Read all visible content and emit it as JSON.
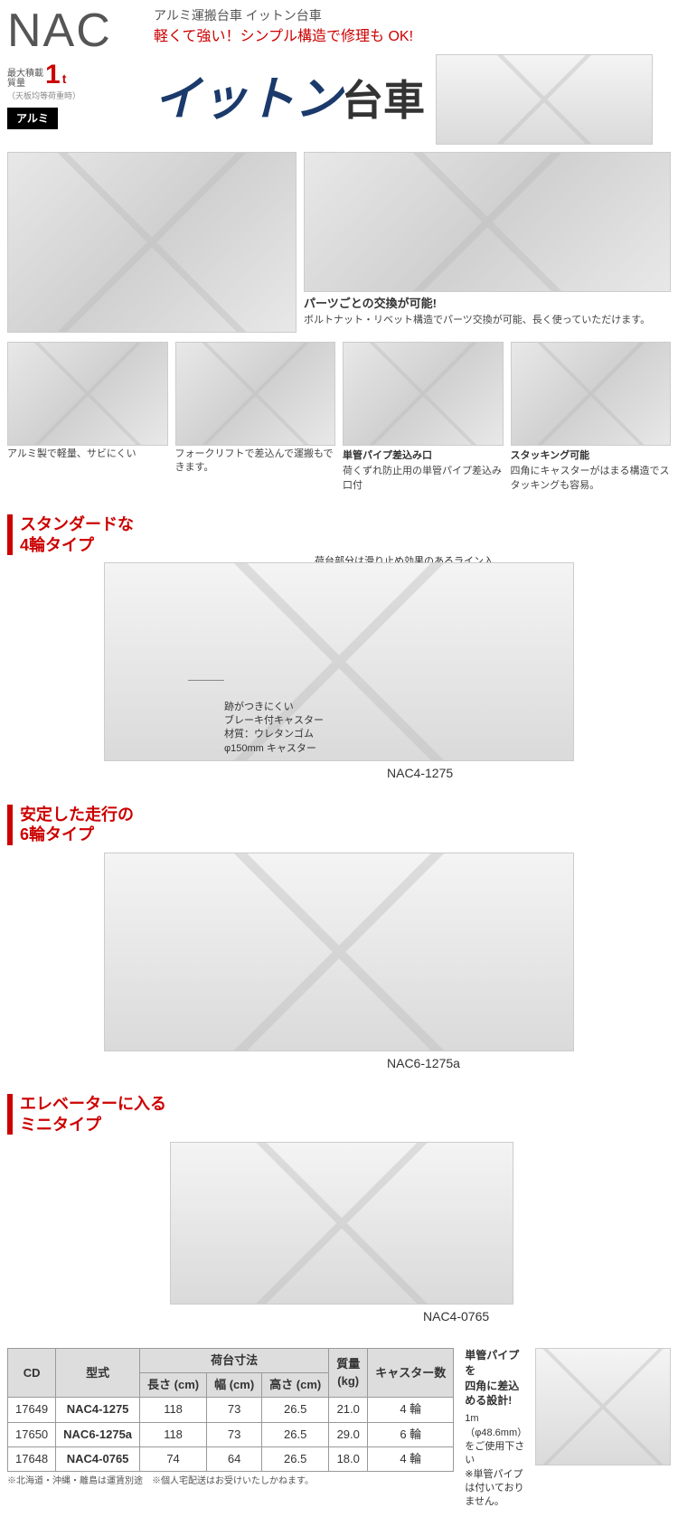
{
  "header": {
    "code": "NAC",
    "subtitle": "アルミ運搬台車 イットン台車",
    "tagline": "軽くて強い！シンプル構造で修理も OK!",
    "load_label": "最大積載\n質量",
    "load_value": "1",
    "load_unit": "t",
    "load_note": "（天板均等荷重時）",
    "material_badge": "アルミ",
    "title_big": "イットン",
    "title_rest": "台車"
  },
  "features": {
    "f1_cap": "",
    "f2_title": "パーツごとの交換が可能!",
    "f2_cap": "ボルトナット・リベット構造でパーツ交換が可能、長く使っていただけます。",
    "f3_cap": "アルミ製で軽量、サビにくい",
    "f4_cap": "フォークリフトで差込んで運搬もできます。",
    "f5_title": "単管パイプ差込み口",
    "f5_cap": "荷くずれ防止用の単管パイプ差込み口付",
    "f6_title": "スタッキング可能",
    "f6_cap": "四角にキャスターがはまる構造でスタッキングも容易。"
  },
  "sections": {
    "s1_head": "スタンダードな\n4輪タイプ",
    "s1_model": "NAC4-1275",
    "s1_call_top": "荷台部分は滑り止め効果のあるライン入り",
    "s1_call_bot": "跡がつきにくい\nブレーキ付キャスター\n材質：ウレタンゴム\nφ150mm キャスター",
    "s2_head": "安定した走行の\n6輪タイプ",
    "s2_model": "NAC6-1275a",
    "s3_head": "エレベーターに入る\nミニタイプ",
    "s3_model": "NAC4-0765"
  },
  "table": {
    "columns": [
      "CD",
      "型式",
      "長さ (cm)",
      "幅 (cm)",
      "高さ (cm)",
      "質量\n(kg)",
      "キャスター数"
    ],
    "group_header": "荷台寸法",
    "rows": [
      [
        "17649",
        "NAC4-1275",
        "118",
        "73",
        "26.5",
        "21.0",
        "4 輪"
      ],
      [
        "17650",
        "NAC6-1275a",
        "118",
        "73",
        "26.5",
        "29.0",
        "6 輪"
      ],
      [
        "17648",
        "NAC4-0765",
        "74",
        "64",
        "26.5",
        "18.0",
        "4 輪"
      ]
    ],
    "note1": "※北海道・沖縄・離島は運賃別途",
    "note2": "※個人宅配送はお受けいたしかねます。"
  },
  "side": {
    "title": "単管パイプを\n四角に差込める設計!",
    "body": "1m（φ48.6mm）をご使用下さい\n※単管パイプは付いておりません。"
  },
  "colors": {
    "accent": "#c00",
    "navy": "#1b3a6b"
  }
}
